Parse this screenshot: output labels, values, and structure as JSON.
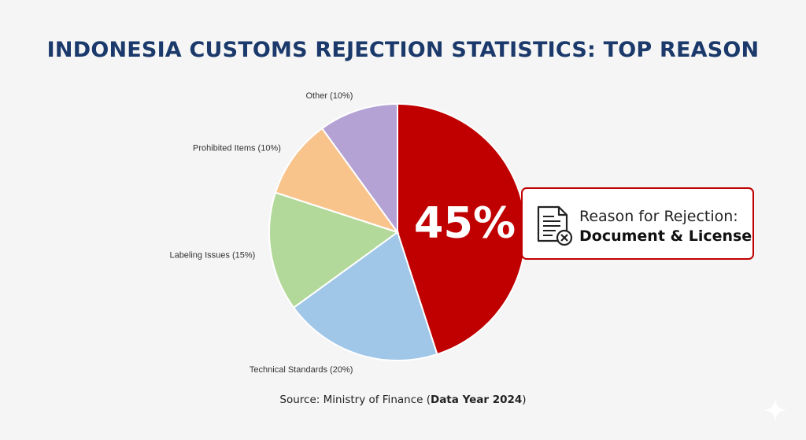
{
  "title": "INDONESIA CUSTOMS REJECTION STATISTICS: TOP REASON",
  "chart_data": {
    "type": "pie",
    "title": "INDONESIA CUSTOMS REJECTION STATISTICS: TOP REASON",
    "slices": [
      {
        "label": "Document & License",
        "value": 45,
        "color": "#c00000",
        "display": "45%"
      },
      {
        "label": "Technical Standards (20%)",
        "value": 20,
        "color": "#a0c6e8"
      },
      {
        "label": "Labeling Issues (15%)",
        "value": 15,
        "color": "#b3d99a"
      },
      {
        "label": "Prohibited Items (10%)",
        "value": 10,
        "color": "#f8c48c"
      },
      {
        "label": "Other (10%)",
        "value": 10,
        "color": "#b4a2d4"
      }
    ]
  },
  "callout": {
    "line1": "Reason for Rejection:",
    "line2": "Document & License"
  },
  "source": {
    "prefix": "Source: Ministry of Finance (",
    "bold": "Data Year 2024",
    "suffix": ")"
  },
  "colors": {
    "accent": "#c00000",
    "title": "#1b3a6b"
  }
}
